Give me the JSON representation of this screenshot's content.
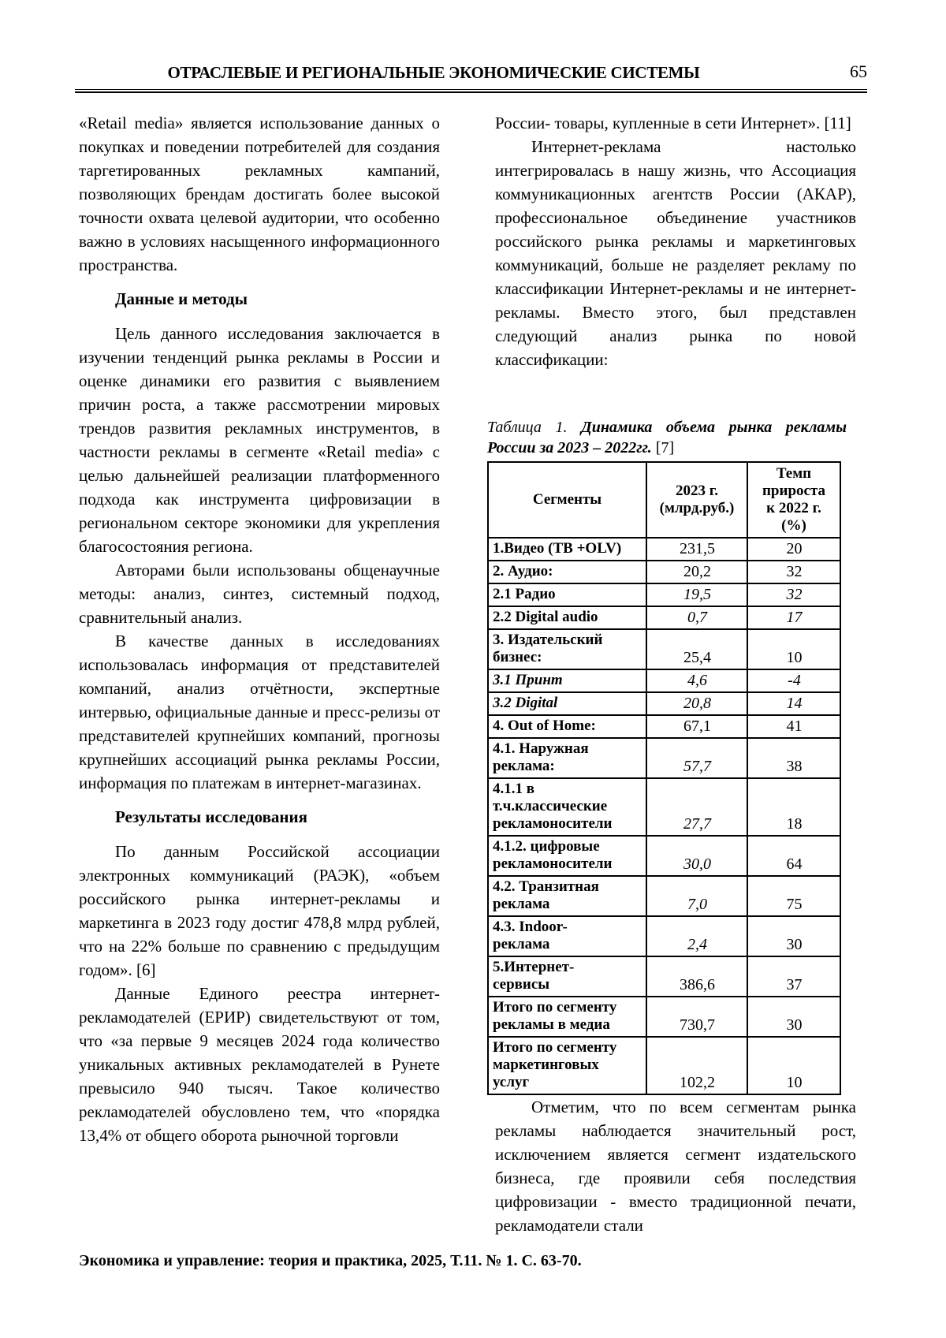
{
  "header": {
    "title": "ОТРАСЛЕВЫЕ И РЕГИОНАЛЬНЫЕ ЭКОНОМИЧЕСКИЕ СИСТЕМЫ",
    "page_number": "65"
  },
  "left_column": {
    "p1": "«Retail media» является использование данных о покупках и поведении потребителей для создания таргетированных рекламных кампаний, позволяющих брендам достигать более высокой точности охвата целевой аудитории, что особенно важно в условиях насыщенного информационного пространства.",
    "h1": "Данные и методы",
    "p2": "Цель данного исследования заключается в изучении тенденций рынка рекламы в России и оценке динамики его развития с выявлением причин роста, а также рассмотрении мировых трендов развития рекламных инструментов, в частности рекламы в сегменте «Retail media» с целью дальнейшей реализации платформенного подхода как инструмента цифровизации в региональном секторе экономики для укрепления благосостояния региона.",
    "p3": "Авторами были использованы общенаучные методы: анализ, синтез, системный подход, сравнительный анализ.",
    "p4": "В качестве данных в исследованиях использовалась информация от представителей компаний, анализ отчётности, экспертные интервью, официальные данные и пресс-релизы от представителей крупнейших компаний, прогнозы крупнейших ассоциаций рынка рекламы России, информация по платежам в интернет-магазинах.",
    "h2": "Результаты исследования",
    "p5": "По данным Российской ассоциации электронных коммуникаций (РАЭК), «объем российского рынка интернет-рекламы и маркетинга в 2023 году достиг 478,8 млрд рублей, что на 22% больше по сравнению с предыдущим годом». [6]",
    "p6": "Данные Единого реестра интернет-рекламодателей (ЕРИР) свидетельствуют от том, что «за первые 9 месяцев 2024 года количество уникальных активных рекламодателей в Рунете превысило 940 тысяч. Такое количество рекламодателей обусловлено тем, что «порядка 13,4% от общего оборота рыночной торговли"
  },
  "right_column": {
    "p1": "России- товары, купленные в сети Интернет». [11]",
    "p2": "Интернет-реклама настолько интегрировалась в нашу жизнь, что Ассоциация коммуникационных агентств России (АКАР), профессиональное объединение участников российского рынка рекламы и маркетинговых коммуникаций, больше не разделяет рекламу по классификации Интернет-рекламы и не интернет-рекламы. Вместо этого, был представлен следующий анализ рынка по новой классификации:",
    "caption_label": "Таблица 1.",
    "caption_title": "Динамика объема рынка рекламы России за 2023 – 2022гг.",
    "caption_ref": "[7]",
    "p3": "Отметим, что по всем сегментам рынка рекламы наблюдается значительный рост, исключением является сегмент издательского бизнеса, где проявили себя последствия цифровизации - вместо традиционной печати, рекламодатели стали"
  },
  "table": {
    "headers": [
      "Сегменты",
      "2023 г.\n(млрд.руб.)",
      "Темп\nприроста\nк 2022 г.\n(%)"
    ],
    "rows": [
      {
        "label": "1.Видео (ТВ +OLV)",
        "value": "231,5",
        "growth": "20",
        "label_italic": false,
        "value_italic": false,
        "growth_italic": false
      },
      {
        "label": "2. Аудио:",
        "value": "20,2",
        "growth": "32",
        "label_italic": false,
        "value_italic": false,
        "growth_italic": false
      },
      {
        "label": "2.1 Радио",
        "value": "19,5",
        "growth": "32",
        "label_italic": false,
        "value_italic": true,
        "growth_italic": true
      },
      {
        "label": "2.2 Digital audio",
        "value": "0,7",
        "growth": "17",
        "label_italic": false,
        "value_italic": true,
        "growth_italic": true
      },
      {
        "label": "3. Издательский\nбизнес:",
        "value": "25,4",
        "growth": "10",
        "label_italic": false,
        "value_italic": false,
        "growth_italic": false
      },
      {
        "label": "3.1 Принт",
        "value": "4,6",
        "growth": "-4",
        "label_italic": true,
        "value_italic": true,
        "growth_italic": true
      },
      {
        "label": "3.2 Digital",
        "value": "20,8",
        "growth": "14",
        "label_italic": true,
        "value_italic": true,
        "growth_italic": true
      },
      {
        "label": "4. Out of Home:",
        "value": "67,1",
        "growth": "41",
        "label_italic": false,
        "value_italic": false,
        "growth_italic": false
      },
      {
        "label": "4.1. Наружная\nреклама:",
        "value": "57,7",
        "growth": "38",
        "label_italic": false,
        "value_italic": true,
        "growth_italic": false
      },
      {
        "label": "4.1.1 в\nт.ч.классические\nрекламоносители",
        "value": "27,7",
        "growth": "18",
        "label_italic": false,
        "value_italic": true,
        "growth_italic": false
      },
      {
        "label": "4.1.2. цифровые\nрекламоносители",
        "value": "30,0",
        "growth": "64",
        "label_italic": false,
        "value_italic": true,
        "growth_italic": false
      },
      {
        "label": "4.2. Транзитная\nреклама",
        "value": "7,0",
        "growth": "75",
        "label_italic": false,
        "value_italic": true,
        "growth_italic": false
      },
      {
        "label": "4.3. Indoor-\nреклама",
        "value": "2,4",
        "growth": "30",
        "label_italic": false,
        "value_italic": true,
        "growth_italic": false
      },
      {
        "label": "5.Интернет-\nсервисы",
        "value": "386,6",
        "growth": "37",
        "label_italic": false,
        "value_italic": false,
        "growth_italic": false
      },
      {
        "label": "Итого по сегменту\nрекламы в медиа",
        "value": "730,7",
        "growth": "30",
        "label_italic": false,
        "value_italic": false,
        "growth_italic": false
      },
      {
        "label": "Итого по сегменту\nмаркетинговых\nуслуг",
        "value": "102,2",
        "growth": "10",
        "label_italic": false,
        "value_italic": false,
        "growth_italic": false
      }
    ]
  },
  "footer": {
    "text": "Экономика и управление: теория и практика, 2025, Т.11. № 1. С. 63-70."
  }
}
